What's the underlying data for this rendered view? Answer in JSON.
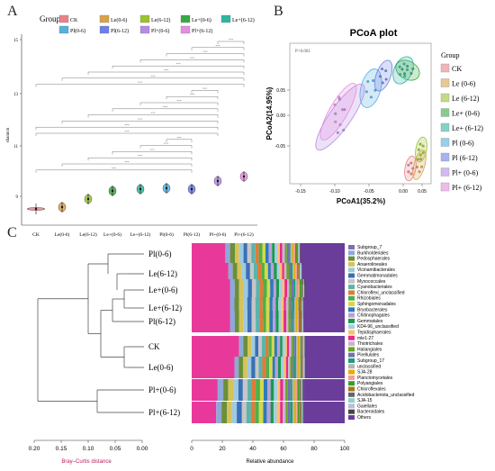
{
  "panels": {
    "a": {
      "label": "A",
      "legend_title": "Group",
      "groups": [
        {
          "name": "CK",
          "color": "#e8838a"
        },
        {
          "name": "Le(0-6)",
          "color": "#d9a24a"
        },
        {
          "name": "Le(6-12)",
          "color": "#9bc22f"
        },
        {
          "name": "Le+(0-6)",
          "color": "#3aa843"
        },
        {
          "name": "Le+(6-12)",
          "color": "#2fb5a0"
        },
        {
          "name": "Pl(0-6)",
          "color": "#54b0e0"
        },
        {
          "name": "Pl(6-12)",
          "color": "#6d7ee8"
        },
        {
          "name": "Pl+(0-6)",
          "color": "#b58be4"
        },
        {
          "name": "Pl+(6-12)",
          "color": "#e58de0"
        }
      ],
      "y_label": "shannon",
      "y_ticks": [
        "9",
        "11",
        "13",
        "15"
      ],
      "x_ticks": [
        "CK",
        "Le(0-6)",
        "Le(6-12)",
        "Le+(0-6)",
        "Le+(6-12)",
        "Pl(0-6)",
        "Pl(6-12)",
        "Pl+(0-6)",
        "Pl+(6-12)"
      ],
      "sig_mark": "***"
    },
    "b": {
      "label": "B",
      "title": "PCoA plot",
      "p_text": "P<0.001",
      "xlabel": "PCoA1(35.2%)",
      "ylabel": "PCoA2(14.95%)",
      "x_ticks": [
        "-0.15",
        "-0.10",
        "-0.05",
        "0.00",
        "0.05"
      ],
      "y_ticks": [
        "0.05",
        "0.00",
        "-0.05"
      ],
      "legend_title": "Group",
      "legend_items": [
        "CK",
        "Le (0-6)",
        "Le (6-12)",
        "Le+ (0-6)",
        "Le+ (6-12)",
        "Pl (0-6)",
        "Pl (6-12)",
        "Pl+ (0-6)",
        "Pl+ (6-12)"
      ]
    },
    "c": {
      "label": "C",
      "samples": [
        "Pl(0-6)",
        "Le(6-12)",
        "Le+(0-6)",
        "Le+(6-12)",
        "Pl(6-12)",
        "CK",
        "Le(0-6)",
        "Pl+(0-6)",
        "Pl+(6-12)"
      ],
      "dist_ticks": [
        "0.20",
        "0.15",
        "0.10",
        "0.05",
        "0.00"
      ],
      "dist_label": "Bray–Curtis distance",
      "abund_ticks": [
        "0",
        "20",
        "40",
        "60",
        "80",
        "100"
      ],
      "abund_label": "Relative abundance",
      "taxa": [
        {
          "name": "Subgroup_7",
          "color": "#7f6fb0"
        },
        {
          "name": "Burkholderiales",
          "color": "#8fa8d8"
        },
        {
          "name": "Pedosphaerales",
          "color": "#6b8f3a"
        },
        {
          "name": "Anaerolineales",
          "color": "#d7c25a"
        },
        {
          "name": "Vicinamibacterales",
          "color": "#9ecae1"
        },
        {
          "name": "Gemmatimonadales",
          "color": "#3b6fb6"
        },
        {
          "name": "Myxococcales",
          "color": "#c6c6c6"
        },
        {
          "name": "Cyanobacteriales",
          "color": "#5ab4ac"
        },
        {
          "name": "Chloroflexi_unclassified",
          "color": "#e07b39"
        },
        {
          "name": "Rhizobiales",
          "color": "#4daf4a"
        },
        {
          "name": "Sphingomonadales",
          "color": "#d6d84a"
        },
        {
          "name": "Bryobacterales",
          "color": "#2f7ab8"
        },
        {
          "name": "Chitinophagales",
          "color": "#b9a0d6"
        },
        {
          "name": "Gemmatales",
          "color": "#1a9850"
        },
        {
          "name": "KD4-96_unclassified",
          "color": "#a6cee3"
        },
        {
          "name": "Tepidisphaerales",
          "color": "#fdbf6f"
        },
        {
          "name": "mle1-27",
          "color": "#e7298a"
        },
        {
          "name": "Thiotrichales",
          "color": "#cab2d6"
        },
        {
          "name": "Haliangiales",
          "color": "#66a61e"
        },
        {
          "name": "Pirellulales",
          "color": "#7570b3"
        },
        {
          "name": "Subgroup_17",
          "color": "#1b9e77"
        },
        {
          "name": "unclassified",
          "color": "#b3b3b3"
        },
        {
          "name": "SJA-28",
          "color": "#e6ab02"
        },
        {
          "name": "Planctomycetales",
          "color": "#fb9a99"
        },
        {
          "name": "Polyangiales",
          "color": "#33a02c"
        },
        {
          "name": "Chloroflexales",
          "color": "#a6761d"
        },
        {
          "name": "Acidobacteriota_unclassified",
          "color": "#666666"
        },
        {
          "name": "SJA-15",
          "color": "#8dd3c7"
        },
        {
          "name": "Gaiellales",
          "color": "#bebada"
        },
        {
          "name": "Bacteroidales",
          "color": "#444444"
        },
        {
          "name": "Others",
          "color": "#6a3d9a"
        }
      ],
      "first_taxon_fraction": [
        0.22,
        0.24,
        0.25,
        0.25,
        0.25,
        0.31,
        0.28,
        0.17,
        0.16
      ],
      "others_fraction": [
        0.29,
        0.28,
        0.26,
        0.27,
        0.27,
        0.26,
        0.26,
        0.27,
        0.27
      ]
    }
  }
}
